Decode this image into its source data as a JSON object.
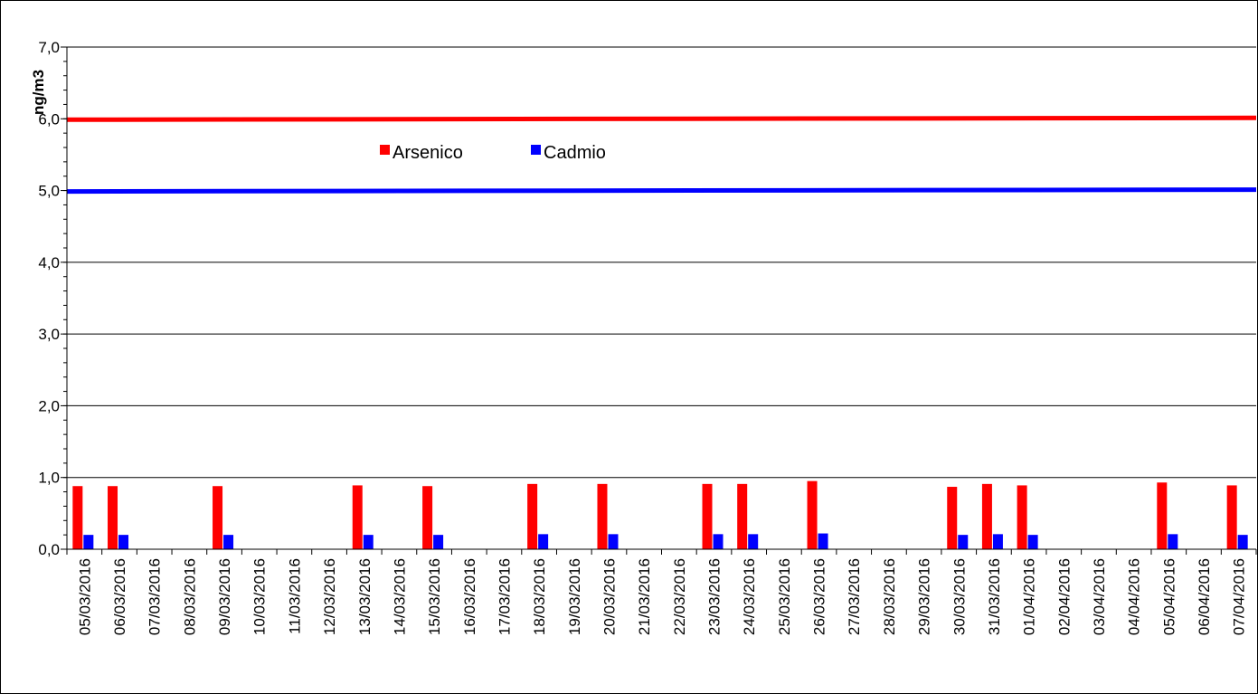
{
  "chart_data": {
    "type": "bar",
    "ylabel": "ng/m3",
    "ylim": [
      0,
      7
    ],
    "y_ticks": [
      "0,0",
      "1,0",
      "2,0",
      "3,0",
      "4,0",
      "5,0",
      "6,0",
      "7,0"
    ],
    "grid": true,
    "legend_position": "top-center",
    "categories": [
      "05/03/2016",
      "06/03/2016",
      "07/03/2016",
      "08/03/2016",
      "09/03/2016",
      "10/03/2016",
      "11/03/2016",
      "12/03/2016",
      "13/03/2016",
      "14/03/2016",
      "15/03/2016",
      "16/03/2016",
      "17/03/2016",
      "18/03/2016",
      "19/03/2016",
      "20/03/2016",
      "21/03/2016",
      "22/03/2016",
      "23/03/2016",
      "24/03/2016",
      "25/03/2016",
      "26/03/2016",
      "27/03/2016",
      "28/03/2016",
      "29/03/2016",
      "30/03/2016",
      "31/03/2016",
      "01/04/2016",
      "02/04/2016",
      "03/04/2016",
      "04/04/2016",
      "05/04/2016",
      "06/04/2016",
      "07/04/2016"
    ],
    "series": [
      {
        "name": "Arsenico",
        "color": "#ff0000",
        "values": [
          0.88,
          0.88,
          null,
          null,
          0.88,
          null,
          null,
          null,
          0.89,
          null,
          0.88,
          null,
          null,
          0.91,
          null,
          0.91,
          null,
          null,
          0.91,
          0.91,
          null,
          0.95,
          null,
          null,
          null,
          0.87,
          0.91,
          0.89,
          null,
          null,
          null,
          0.93,
          null,
          0.89
        ]
      },
      {
        "name": "Cadmio",
        "color": "#0000ff",
        "values": [
          0.2,
          0.2,
          null,
          null,
          0.2,
          null,
          null,
          null,
          0.2,
          null,
          0.2,
          null,
          null,
          0.21,
          null,
          0.21,
          null,
          null,
          0.21,
          0.21,
          null,
          0.22,
          null,
          null,
          null,
          0.2,
          0.21,
          0.2,
          null,
          null,
          null,
          0.21,
          null,
          0.2
        ]
      }
    ],
    "reference_lines": [
      {
        "value": 6.0,
        "color": "#ff0000"
      },
      {
        "value": 5.0,
        "color": "#0000ff"
      }
    ]
  }
}
